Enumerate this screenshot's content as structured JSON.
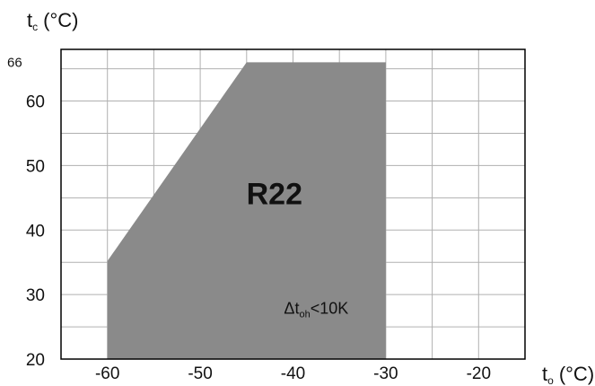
{
  "chart_data": {
    "type": "area",
    "title": "",
    "xlabel": {
      "main": "t",
      "sub": "o",
      "unit": "(°C)"
    },
    "ylabel": {
      "main": "t",
      "sub": "c",
      "unit": "(°C)"
    },
    "xlim": [
      -65,
      -15
    ],
    "ylim": [
      20,
      68
    ],
    "grid": true,
    "x_gridlines": [
      -60,
      -55,
      -50,
      -45,
      -40,
      -35,
      -30,
      -25,
      -20
    ],
    "y_gridlines": [
      25,
      30,
      35,
      40,
      45,
      50,
      55,
      60,
      65
    ],
    "x_ticks": [
      {
        "value": -60,
        "label": "-60"
      },
      {
        "value": -50,
        "label": "-50"
      },
      {
        "value": -40,
        "label": "-40"
      },
      {
        "value": -30,
        "label": "-30"
      },
      {
        "value": -20,
        "label": "-20"
      }
    ],
    "y_ticks": [
      {
        "value": 20,
        "label": "20"
      },
      {
        "value": 30,
        "label": "30"
      },
      {
        "value": 40,
        "label": "40"
      },
      {
        "value": 50,
        "label": "50"
      },
      {
        "value": 60,
        "label": "60"
      },
      {
        "value": 66,
        "label": "66"
      }
    ],
    "series": [
      {
        "name": "R22",
        "points": [
          {
            "x": -60,
            "y": 20
          },
          {
            "x": -60,
            "y": 35.2
          },
          {
            "x": -45,
            "y": 66
          },
          {
            "x": -30,
            "y": 66
          },
          {
            "x": -30,
            "y": 20
          }
        ]
      }
    ],
    "annotations": [
      {
        "id": "refrigerant",
        "text": "R22",
        "x": -42,
        "y": 44
      },
      {
        "id": "superheat",
        "main": "Δt",
        "sub": "oh",
        "rest": "<10K",
        "x": -37.5,
        "y": 27
      }
    ],
    "colors": {
      "region_fill": "#8a8a8a",
      "grid": "#b0b0b0",
      "frame": "#000000",
      "text": "#111111"
    }
  }
}
